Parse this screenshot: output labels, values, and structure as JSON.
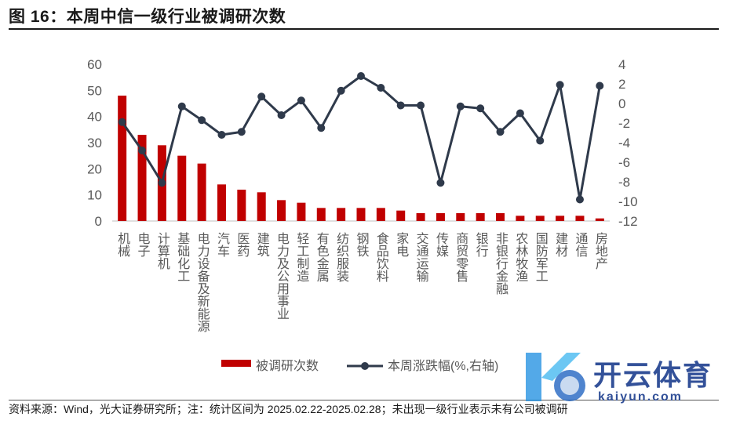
{
  "title": "图 16：本周中信一级行业被调研次数",
  "source": "资料来源：Wind，光大证券研究所；注：统计区间为 2025.02.22-2025.02.28；未出现一级行业表示未有公司被调研",
  "watermark": {
    "cn": "开云体育",
    "en": "kaiyun.com"
  },
  "colors": {
    "bar": "#c00000",
    "line": "#2f3a4b",
    "axis": "#bfbfbf",
    "text": "#595959"
  },
  "chart_data": {
    "type": "bar+line",
    "categories": [
      "机械",
      "电子",
      "计算机",
      "基础化工",
      "电力设备及新能源",
      "汽车",
      "医药",
      "建筑",
      "电力及公用事业",
      "轻工制造",
      "有色金属",
      "纺织服装",
      "钢铁",
      "食品饮料",
      "家电",
      "交通运输",
      "传媒",
      "商贸零售",
      "银行",
      "非银行金融",
      "农林牧渔",
      "国防军工",
      "建材",
      "通信",
      "房地产"
    ],
    "series": [
      {
        "name": "被调研次数",
        "type": "bar",
        "axis": "left",
        "values": [
          48,
          33,
          29,
          25,
          22,
          14,
          12,
          11,
          8,
          7,
          5,
          5,
          5,
          5,
          4,
          3,
          3,
          3,
          3,
          3,
          2,
          2,
          2,
          2,
          1
        ]
      },
      {
        "name": "本周涨跌幅(%,右轴)",
        "type": "line",
        "axis": "right",
        "values": [
          -1.9,
          -4.8,
          -8.1,
          -0.3,
          -1.7,
          -3.2,
          -2.9,
          0.7,
          -1.2,
          0.3,
          -2.5,
          1.3,
          2.8,
          1.6,
          -0.2,
          -0.2,
          -8.1,
          -0.3,
          -0.5,
          -2.9,
          -1.0,
          -3.8,
          1.9,
          -9.8,
          1.8
        ]
      }
    ],
    "y_left": {
      "min": 0,
      "max": 60,
      "ticks": [
        "0",
        "10",
        "20",
        "30",
        "40",
        "50",
        "60"
      ]
    },
    "y_right": {
      "min": -12,
      "max": 4,
      "ticks": [
        "-12",
        "-10",
        "-8",
        "-6",
        "-4",
        "-2",
        "0",
        "2",
        "4"
      ]
    },
    "legend": "bottom"
  }
}
